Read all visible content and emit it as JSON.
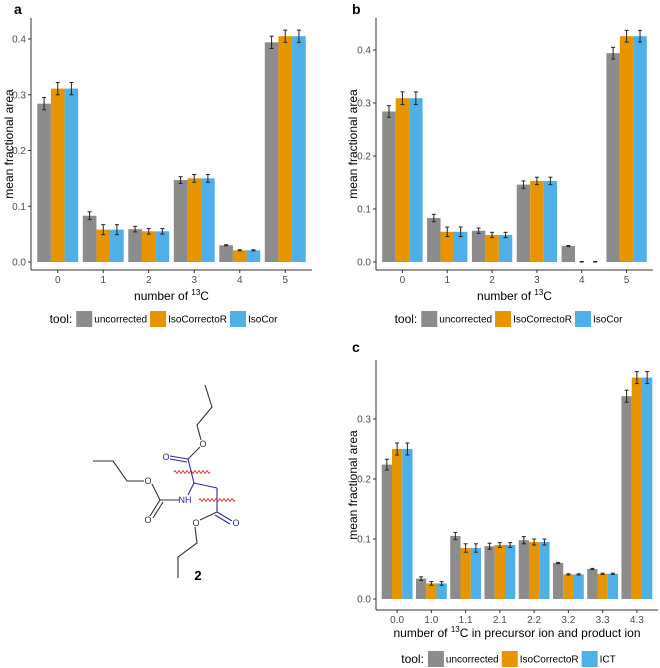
{
  "colors": {
    "uncorrected": "#8c8c8c",
    "IsoCorrectoR": "#e69500",
    "corrected3": "#4eb0e6",
    "axis": "#333333",
    "error": "#222222",
    "molecule_black": "#333333",
    "molecule_blue": "#2b2b9e",
    "wavy_red": "#d12020"
  },
  "chart_data": [
    {
      "panel": "a",
      "type": "bar",
      "categories": [
        "0",
        "1",
        "2",
        "3",
        "4",
        "5"
      ],
      "series": [
        {
          "name": "uncorrected",
          "values": [
            0.284,
            0.083,
            0.059,
            0.147,
            0.03,
            0.394
          ],
          "errors": [
            0.011,
            0.007,
            0.005,
            0.006,
            0.001,
            0.011
          ]
        },
        {
          "name": "IsoCorrectoR",
          "values": [
            0.311,
            0.058,
            0.055,
            0.15,
            0.021,
            0.405
          ],
          "errors": [
            0.011,
            0.009,
            0.005,
            0.007,
            0.001,
            0.011
          ]
        },
        {
          "name": "IsoCor",
          "values": [
            0.311,
            0.058,
            0.055,
            0.15,
            0.021,
            0.405
          ],
          "errors": [
            0.011,
            0.009,
            0.005,
            0.007,
            0.001,
            0.011
          ]
        }
      ],
      "yticks": [
        "0.0",
        "0.1",
        "0.2",
        "0.3",
        "0.4"
      ],
      "ylim": [
        0,
        0.45
      ],
      "ylabel": "mean fractional area",
      "xlabel": {
        "prefix": "number of  ",
        "sup": "13",
        "suffix": "C"
      },
      "legend": {
        "title": "tool:",
        "position": "bottom",
        "labels": [
          "uncorrected",
          "IsoCorrectoR",
          "IsoCor"
        ]
      }
    },
    {
      "panel": "b",
      "type": "bar",
      "categories": [
        "0",
        "1",
        "2",
        "3",
        "4",
        "5"
      ],
      "series": [
        {
          "name": "uncorrected",
          "values": [
            0.284,
            0.083,
            0.059,
            0.146,
            0.03,
            0.394
          ],
          "errors": [
            0.011,
            0.007,
            0.005,
            0.007,
            0.001,
            0.011
          ]
        },
        {
          "name": "IsoCorrectoR",
          "values": [
            0.309,
            0.057,
            0.051,
            0.153,
            0.0,
            0.426
          ],
          "errors": [
            0.012,
            0.009,
            0.005,
            0.007,
            0.001,
            0.011
          ]
        },
        {
          "name": "IsoCor",
          "values": [
            0.309,
            0.057,
            0.051,
            0.153,
            0.0,
            0.426
          ],
          "errors": [
            0.012,
            0.009,
            0.005,
            0.007,
            0.001,
            0.011
          ]
        }
      ],
      "yticks": [
        "0.0",
        "0.1",
        "0.2",
        "0.3",
        "0.4"
      ],
      "ylim": [
        0,
        0.45
      ],
      "ylabel": "mean fractional area",
      "xlabel": {
        "prefix": "number of  ",
        "sup": "13",
        "suffix": "C"
      },
      "legend": {
        "title": "tool:",
        "position": "bottom",
        "labels": [
          "uncorrected",
          "IsoCorrectoR",
          "IsoCor"
        ]
      }
    },
    {
      "panel": "c",
      "type": "bar",
      "categories": [
        "0.0",
        "1.0",
        "1.1",
        "2.1",
        "2.2",
        "3.2",
        "3.3",
        "4.3"
      ],
      "series": [
        {
          "name": "uncorrected",
          "values": [
            0.224,
            0.034,
            0.105,
            0.088,
            0.098,
            0.06,
            0.05,
            0.338
          ],
          "errors": [
            0.009,
            0.003,
            0.006,
            0.005,
            0.006,
            0.001,
            0.001,
            0.01
          ]
        },
        {
          "name": "IsoCorrectoR",
          "values": [
            0.25,
            0.026,
            0.085,
            0.09,
            0.095,
            0.041,
            0.042,
            0.369
          ],
          "errors": [
            0.01,
            0.003,
            0.007,
            0.004,
            0.005,
            0.001,
            0.001,
            0.01
          ]
        },
        {
          "name": "ICT",
          "values": [
            0.25,
            0.026,
            0.085,
            0.09,
            0.095,
            0.041,
            0.042,
            0.369
          ],
          "errors": [
            0.01,
            0.003,
            0.007,
            0.004,
            0.005,
            0.001,
            0.001,
            0.01
          ]
        }
      ],
      "yticks": [
        "0.0",
        "0.1",
        "0.2",
        "0.3"
      ],
      "ylim": [
        0,
        0.4
      ],
      "ylabel": "mean fractional area",
      "xlabel": {
        "prefix": "number of  ",
        "sup": "13",
        "suffix": "C in precursor ion and product ion"
      },
      "legend": {
        "title": "tool:",
        "position": "bottom",
        "labels": [
          "uncorrected",
          "IsoCorrectoR",
          "ICT"
        ]
      }
    }
  ],
  "molecule": {
    "compound_label": "2",
    "atom_o": "O",
    "atom_nh": "NH"
  }
}
